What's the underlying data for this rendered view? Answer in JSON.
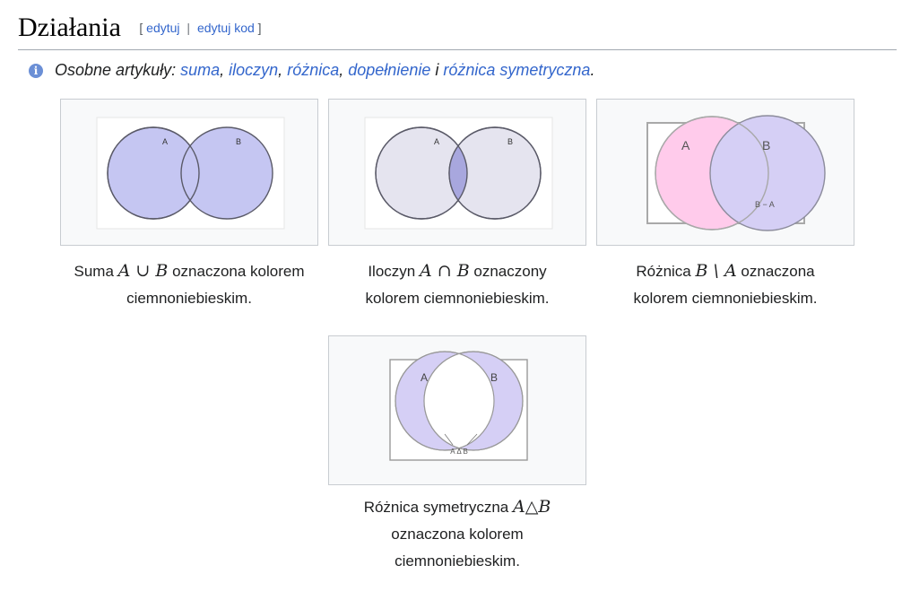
{
  "heading": {
    "title": "Działania",
    "bracket_open": "[",
    "edit": "edytuj",
    "separator": "|",
    "edit_source": "edytuj kod",
    "bracket_close": "]"
  },
  "hatnote": {
    "icon": "info-icon",
    "prefix": "Osobne artykuły:",
    "links": [
      "suma",
      "iloczyn",
      "różnica",
      "dopełnienie",
      "różnica symetryczna"
    ],
    "sep1": ",",
    "sep2": ",",
    "sep3": ",",
    "conj": "i",
    "end": "."
  },
  "figures": [
    {
      "label_a": "A",
      "label_b": "B",
      "caption_pre": "Suma",
      "caption_math": "A ∪ B",
      "caption_post": "oznaczona kolorem",
      "caption_line2": "ciemnoniebieskim."
    },
    {
      "label_a": "A",
      "label_b": "B",
      "caption_pre": "Iloczyn",
      "caption_math": "A ∩ B",
      "caption_post": "oznaczony",
      "caption_line2": "kolorem ciemnoniebieskim."
    },
    {
      "label_a": "A",
      "label_b": "B",
      "label_diff": "B − A",
      "caption_pre": "Różnica",
      "caption_math": "B \\ A",
      "caption_post": "oznaczona",
      "caption_line2": "kolorem ciemnoniebieskim."
    },
    {
      "label_a": "A",
      "label_b": "B",
      "label_sym": "A Δ B",
      "caption_pre": "Różnica symetryczna",
      "caption_math": "A△B",
      "caption_line2": "oznaczona kolorem",
      "caption_line3": "ciemnoniebieskim."
    }
  ],
  "colors": {
    "link": "#3366cc",
    "set_fill": "#c5c6f2",
    "set_fill_light": "#e5e4ef",
    "intersection_fill": "#a8a7de",
    "pink_fill": "#ffcbeb",
    "purple_fill": "#d5cff5"
  }
}
